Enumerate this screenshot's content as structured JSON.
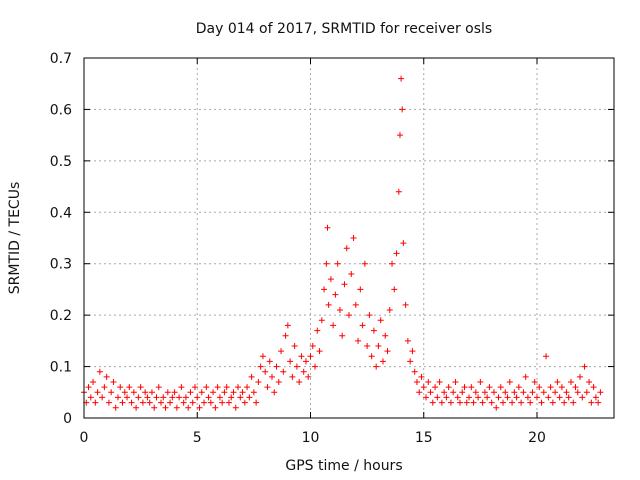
{
  "chart_data": {
    "type": "scatter",
    "title": "Day 014 of 2017, SRMTID for receiver osls",
    "xlabel": "GPS time / hours",
    "ylabel": "SRMTID / TECUs",
    "xlim": [
      0,
      23.4
    ],
    "ylim": [
      0,
      0.7
    ],
    "xticks": [
      0,
      5,
      10,
      15,
      20
    ],
    "yticks": [
      0,
      0.1,
      0.2,
      0.3,
      0.4,
      0.5,
      0.6,
      0.7
    ],
    "grid": true,
    "marker": "plus",
    "series": [
      {
        "name": "osls",
        "color": "#ff0000",
        "points": [
          [
            0.0,
            0.05
          ],
          [
            0.1,
            0.03
          ],
          [
            0.2,
            0.06
          ],
          [
            0.3,
            0.04
          ],
          [
            0.4,
            0.07
          ],
          [
            0.5,
            0.03
          ],
          [
            0.6,
            0.05
          ],
          [
            0.7,
            0.09
          ],
          [
            0.8,
            0.04
          ],
          [
            0.9,
            0.06
          ],
          [
            1.0,
            0.08
          ],
          [
            1.1,
            0.03
          ],
          [
            1.2,
            0.05
          ],
          [
            1.3,
            0.07
          ],
          [
            1.4,
            0.02
          ],
          [
            1.5,
            0.04
          ],
          [
            1.6,
            0.06
          ],
          [
            1.7,
            0.03
          ],
          [
            1.8,
            0.05
          ],
          [
            1.9,
            0.04
          ],
          [
            2.0,
            0.06
          ],
          [
            2.1,
            0.03
          ],
          [
            2.2,
            0.05
          ],
          [
            2.3,
            0.02
          ],
          [
            2.4,
            0.04
          ],
          [
            2.5,
            0.06
          ],
          [
            2.6,
            0.03
          ],
          [
            2.7,
            0.05
          ],
          [
            2.8,
            0.04
          ],
          [
            2.9,
            0.03
          ],
          [
            3.0,
            0.05
          ],
          [
            3.1,
            0.02
          ],
          [
            3.2,
            0.04
          ],
          [
            3.3,
            0.06
          ],
          [
            3.4,
            0.03
          ],
          [
            3.5,
            0.04
          ],
          [
            3.6,
            0.02
          ],
          [
            3.7,
            0.05
          ],
          [
            3.8,
            0.03
          ],
          [
            3.9,
            0.04
          ],
          [
            4.0,
            0.05
          ],
          [
            4.1,
            0.02
          ],
          [
            4.2,
            0.04
          ],
          [
            4.3,
            0.06
          ],
          [
            4.4,
            0.03
          ],
          [
            4.5,
            0.04
          ],
          [
            4.6,
            0.02
          ],
          [
            4.7,
            0.05
          ],
          [
            4.8,
            0.03
          ],
          [
            4.9,
            0.06
          ],
          [
            5.0,
            0.04
          ],
          [
            5.1,
            0.02
          ],
          [
            5.2,
            0.05
          ],
          [
            5.3,
            0.03
          ],
          [
            5.4,
            0.06
          ],
          [
            5.5,
            0.04
          ],
          [
            5.6,
            0.03
          ],
          [
            5.7,
            0.05
          ],
          [
            5.8,
            0.02
          ],
          [
            5.9,
            0.06
          ],
          [
            6.0,
            0.04
          ],
          [
            6.1,
            0.03
          ],
          [
            6.2,
            0.05
          ],
          [
            6.3,
            0.06
          ],
          [
            6.4,
            0.03
          ],
          [
            6.5,
            0.04
          ],
          [
            6.6,
            0.05
          ],
          [
            6.7,
            0.02
          ],
          [
            6.8,
            0.06
          ],
          [
            6.9,
            0.04
          ],
          [
            7.0,
            0.05
          ],
          [
            7.1,
            0.03
          ],
          [
            7.2,
            0.06
          ],
          [
            7.3,
            0.04
          ],
          [
            7.4,
            0.08
          ],
          [
            7.5,
            0.05
          ],
          [
            7.6,
            0.03
          ],
          [
            7.7,
            0.07
          ],
          [
            7.8,
            0.1
          ],
          [
            7.9,
            0.12
          ],
          [
            8.0,
            0.09
          ],
          [
            8.1,
            0.06
          ],
          [
            8.2,
            0.11
          ],
          [
            8.3,
            0.08
          ],
          [
            8.4,
            0.05
          ],
          [
            8.5,
            0.1
          ],
          [
            8.6,
            0.07
          ],
          [
            8.7,
            0.13
          ],
          [
            8.8,
            0.09
          ],
          [
            8.9,
            0.16
          ],
          [
            9.0,
            0.18
          ],
          [
            9.1,
            0.11
          ],
          [
            9.2,
            0.08
          ],
          [
            9.3,
            0.14
          ],
          [
            9.4,
            0.1
          ],
          [
            9.5,
            0.07
          ],
          [
            9.6,
            0.12
          ],
          [
            9.7,
            0.09
          ],
          [
            9.8,
            0.11
          ],
          [
            9.9,
            0.08
          ],
          [
            10.0,
            0.12
          ],
          [
            10.1,
            0.14
          ],
          [
            10.2,
            0.1
          ],
          [
            10.3,
            0.17
          ],
          [
            10.4,
            0.13
          ],
          [
            10.5,
            0.19
          ],
          [
            10.6,
            0.25
          ],
          [
            10.7,
            0.3
          ],
          [
            10.75,
            0.37
          ],
          [
            10.8,
            0.22
          ],
          [
            10.9,
            0.27
          ],
          [
            11.0,
            0.18
          ],
          [
            11.1,
            0.24
          ],
          [
            11.2,
            0.3
          ],
          [
            11.3,
            0.21
          ],
          [
            11.4,
            0.16
          ],
          [
            11.5,
            0.26
          ],
          [
            11.6,
            0.33
          ],
          [
            11.7,
            0.2
          ],
          [
            11.8,
            0.28
          ],
          [
            11.9,
            0.35
          ],
          [
            12.0,
            0.22
          ],
          [
            12.1,
            0.15
          ],
          [
            12.2,
            0.25
          ],
          [
            12.3,
            0.18
          ],
          [
            12.4,
            0.3
          ],
          [
            12.5,
            0.14
          ],
          [
            12.6,
            0.2
          ],
          [
            12.7,
            0.12
          ],
          [
            12.8,
            0.17
          ],
          [
            12.9,
            0.1
          ],
          [
            13.0,
            0.14
          ],
          [
            13.1,
            0.19
          ],
          [
            13.2,
            0.11
          ],
          [
            13.3,
            0.16
          ],
          [
            13.4,
            0.13
          ],
          [
            13.5,
            0.21
          ],
          [
            13.6,
            0.3
          ],
          [
            13.7,
            0.25
          ],
          [
            13.8,
            0.32
          ],
          [
            13.9,
            0.44
          ],
          [
            13.95,
            0.55
          ],
          [
            14.0,
            0.66
          ],
          [
            14.05,
            0.6
          ],
          [
            14.1,
            0.34
          ],
          [
            14.2,
            0.22
          ],
          [
            14.3,
            0.15
          ],
          [
            14.4,
            0.11
          ],
          [
            14.5,
            0.13
          ],
          [
            14.6,
            0.09
          ],
          [
            14.7,
            0.07
          ],
          [
            14.8,
            0.05
          ],
          [
            14.9,
            0.08
          ],
          [
            15.0,
            0.06
          ],
          [
            15.1,
            0.04
          ],
          [
            15.2,
            0.07
          ],
          [
            15.3,
            0.05
          ],
          [
            15.4,
            0.03
          ],
          [
            15.5,
            0.06
          ],
          [
            15.6,
            0.04
          ],
          [
            15.7,
            0.07
          ],
          [
            15.8,
            0.03
          ],
          [
            15.9,
            0.05
          ],
          [
            16.0,
            0.04
          ],
          [
            16.1,
            0.06
          ],
          [
            16.2,
            0.03
          ],
          [
            16.3,
            0.05
          ],
          [
            16.4,
            0.07
          ],
          [
            16.5,
            0.04
          ],
          [
            16.6,
            0.03
          ],
          [
            16.7,
            0.05
          ],
          [
            16.8,
            0.06
          ],
          [
            16.9,
            0.03
          ],
          [
            17.0,
            0.04
          ],
          [
            17.1,
            0.06
          ],
          [
            17.2,
            0.03
          ],
          [
            17.3,
            0.05
          ],
          [
            17.4,
            0.04
          ],
          [
            17.5,
            0.07
          ],
          [
            17.6,
            0.03
          ],
          [
            17.7,
            0.05
          ],
          [
            17.8,
            0.04
          ],
          [
            17.9,
            0.06
          ],
          [
            18.0,
            0.03
          ],
          [
            18.1,
            0.05
          ],
          [
            18.2,
            0.02
          ],
          [
            18.3,
            0.04
          ],
          [
            18.4,
            0.06
          ],
          [
            18.5,
            0.03
          ],
          [
            18.6,
            0.05
          ],
          [
            18.7,
            0.04
          ],
          [
            18.8,
            0.07
          ],
          [
            18.9,
            0.03
          ],
          [
            19.0,
            0.05
          ],
          [
            19.1,
            0.04
          ],
          [
            19.2,
            0.06
          ],
          [
            19.3,
            0.03
          ],
          [
            19.4,
            0.05
          ],
          [
            19.5,
            0.08
          ],
          [
            19.6,
            0.04
          ],
          [
            19.7,
            0.03
          ],
          [
            19.8,
            0.05
          ],
          [
            19.9,
            0.07
          ],
          [
            20.0,
            0.04
          ],
          [
            20.1,
            0.06
          ],
          [
            20.2,
            0.03
          ],
          [
            20.3,
            0.05
          ],
          [
            20.4,
            0.12
          ],
          [
            20.5,
            0.04
          ],
          [
            20.6,
            0.06
          ],
          [
            20.7,
            0.03
          ],
          [
            20.8,
            0.05
          ],
          [
            20.9,
            0.07
          ],
          [
            21.0,
            0.04
          ],
          [
            21.1,
            0.06
          ],
          [
            21.2,
            0.03
          ],
          [
            21.3,
            0.05
          ],
          [
            21.4,
            0.04
          ],
          [
            21.5,
            0.07
          ],
          [
            21.6,
            0.03
          ],
          [
            21.7,
            0.06
          ],
          [
            21.8,
            0.05
          ],
          [
            21.9,
            0.08
          ],
          [
            22.0,
            0.04
          ],
          [
            22.1,
            0.1
          ],
          [
            22.2,
            0.05
          ],
          [
            22.3,
            0.07
          ],
          [
            22.4,
            0.03
          ],
          [
            22.5,
            0.06
          ],
          [
            22.6,
            0.04
          ],
          [
            22.7,
            0.03
          ],
          [
            22.8,
            0.05
          ]
        ]
      }
    ]
  }
}
